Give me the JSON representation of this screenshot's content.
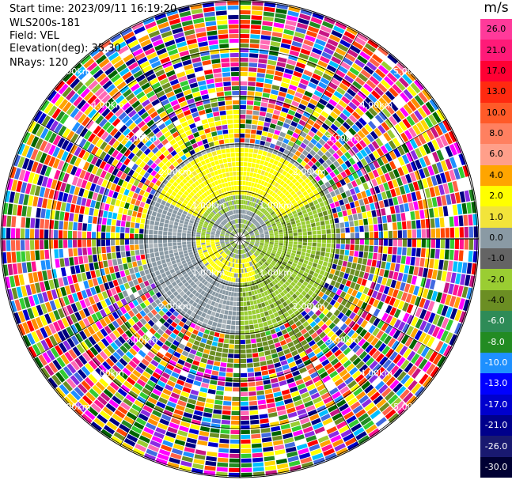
{
  "header": {
    "start_time": "Start time: 2023/09/11 16:19:20",
    "instrument": "WLS200s-181",
    "field": "Field: VEL",
    "elevation": "Elevation(deg): 35.30",
    "nrays": "NRays: 120"
  },
  "colorbar": {
    "unit": "m/s",
    "ticks": [
      "26.0",
      "21.0",
      "17.0",
      "13.0",
      "10.0",
      "8.0",
      "6.0",
      "4.0",
      "2.0",
      "1.0",
      "0.0",
      "-1.0",
      "-2.0",
      "-4.0",
      "-6.0",
      "-8.0",
      "-10.0",
      "-13.0",
      "-17.0",
      "-21.0",
      "-26.0",
      "-30.0"
    ],
    "colors": [
      "#ff3a9a",
      "#ff1a78",
      "#ff0033",
      "#ff2a10",
      "#ff5a28",
      "#ff8060",
      "#ff9f8a",
      "#ffa500",
      "#ffff00",
      "#f2e43a",
      "#8a9aa4",
      "#646464",
      "#9acd32",
      "#6b8e23",
      "#2e8b57",
      "#228b22",
      "#1e90ff",
      "#0000ff",
      "#0000cd",
      "#00008b",
      "#191970",
      "#000033"
    ]
  },
  "range_rings": {
    "labels": [
      "1.00km",
      "2.00km",
      "3.00km",
      "4.00km",
      "5.00km"
    ]
  },
  "noise_palette": [
    "#ff1493",
    "#ff00ff",
    "#ff0000",
    "#0000cd",
    "#00008b",
    "#ffd700",
    "#ffff00",
    "#1e90ff",
    "#32cd32",
    "#228b22",
    "#ff8c00",
    "#ff69b4",
    "#8a2be2",
    "#00bfff",
    "#9acd32",
    "#ffa500",
    "#ff4500",
    "#000080",
    "#ffffff",
    "#c71585",
    "#6b8e23",
    "#ff6347",
    "#006400",
    "#4169e1"
  ]
}
